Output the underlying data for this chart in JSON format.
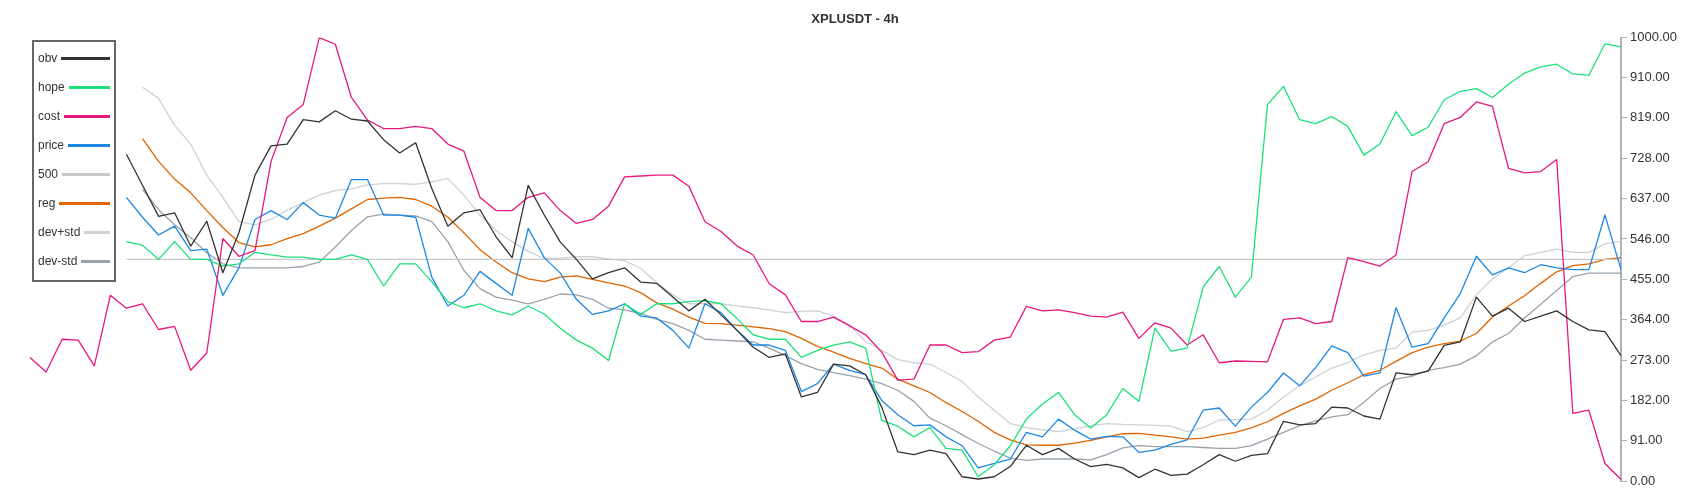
{
  "chart_data": {
    "type": "line",
    "title": "XPLUSDT - 4h",
    "categories": [
      null,
      null,
      null,
      null,
      null,
      null,
      null,
      null,
      null,
      null,
      null,
      null,
      null,
      null,
      null,
      null,
      null,
      null,
      null,
      null,
      null,
      null,
      null,
      null,
      null,
      null,
      null,
      null,
      null,
      null,
      null,
      null,
      null,
      null,
      null,
      null,
      null,
      null,
      null,
      null,
      null,
      null,
      null,
      null,
      null,
      null,
      null,
      null,
      null,
      null,
      null,
      null,
      null,
      null,
      null,
      null,
      null,
      null,
      null,
      null,
      null,
      null,
      null,
      null,
      null,
      null,
      null,
      null,
      null,
      null,
      null,
      null,
      null,
      null,
      null,
      null,
      null,
      null,
      null,
      null,
      null,
      null,
      null,
      null,
      null,
      null,
      null,
      null,
      null,
      null,
      null,
      null,
      null,
      null,
      null,
      null,
      null,
      null,
      null,
      null
    ],
    "series": [
      {
        "name": "obv",
        "color": "#333333",
        "values": [
          null,
          null,
          null,
          null,
          null,
          null,
          737,
          667,
          597,
          605,
          530,
          586,
          470,
          560,
          690,
          756,
          760,
          815,
          810,
          835,
          816,
          812,
          770,
          740,
          763,
          660,
          575,
          605,
          612,
          551,
          504,
          667,
          600,
          539,
          500,
          456,
          470,
          481,
          449,
          446,
          415,
          384,
          410,
          375,
          340,
          302,
          279,
          287,
          190,
          200,
          264,
          260,
          240,
          167,
          66,
          60,
          70,
          62,
          10,
          5,
          10,
          33,
          81,
          60,
          74,
          50,
          33,
          38,
          30,
          8,
          27,
          13,
          16,
          37,
          60,
          45,
          58,
          62,
          135,
          127,
          130,
          167,
          165,
          147,
          140,
          244,
          240,
          248,
          306,
          314,
          415,
          372,
          390,
          360,
          372,
          384,
          360,
          341,
          337,
          283
        ]
      },
      {
        "name": "hope",
        "color": "#1ee07a",
        "values": [
          null,
          null,
          null,
          null,
          null,
          null,
          540,
          532,
          500,
          540,
          500,
          500,
          485,
          490,
          516,
          510,
          505,
          505,
          500,
          500,
          510,
          500,
          440,
          490,
          490,
          450,
          405,
          391,
          400,
          384,
          375,
          395,
          377,
          345,
          318,
          300,
          272,
          400,
          376,
          400,
          400,
          405,
          407,
          400,
          366,
          330,
          320,
          320,
          279,
          295,
          307,
          314,
          300,
          137,
          124,
          100,
          121,
          74,
          70,
          10,
          37,
          80,
          140,
          174,
          200,
          150,
          120,
          150,
          209,
          180,
          345,
          293,
          300,
          438,
          484,
          415,
          460,
          849,
          890,
          815,
          806,
          822,
          800,
          735,
          760,
          833,
          779,
          798,
          860,
          879,
          885,
          865,
          895,
          920,
          934,
          940,
          918,
          915,
          986,
          979
        ]
      },
      {
        "name": "cost",
        "color": "#e6187f",
        "values": [
          279,
          246,
          320,
          318,
          260,
          419,
          390,
          400,
          342,
          349,
          250,
          289,
          547,
          507,
          520,
          721,
          820,
          849,
          1000,
          985,
          865,
          814,
          795,
          795,
          800,
          795,
          760,
          744,
          640,
          610,
          610,
          640,
          650,
          610,
          581,
          590,
          620,
          686,
          688,
          690,
          690,
          665,
          585,
          563,
          530,
          510,
          445,
          420,
          360,
          360,
          370,
          350,
          330,
          291,
          228,
          230,
          307,
          307,
          290,
          292,
          318,
          325,
          394,
          384,
          386,
          380,
          372,
          370,
          381,
          322,
          357,
          345,
          307,
          330,
          267,
          271,
          270,
          269,
          365,
          368,
          355,
          360,
          504,
          495,
          485,
          510,
          698,
          720,
          806,
          820,
          855,
          845,
          705,
          695,
          698,
          725,
          153,
          160,
          40,
          4
        ]
      },
      {
        "name": "price",
        "color": "#1e88e5",
        "values": [
          null,
          null,
          null,
          null,
          null,
          null,
          640,
          595,
          555,
          575,
          520,
          523,
          419,
          481,
          590,
          610,
          590,
          628,
          600,
          593,
          680,
          680,
          600,
          600,
          595,
          460,
          395,
          419,
          473,
          446,
          419,
          570,
          504,
          469,
          410,
          376,
          384,
          400,
          372,
          368,
          340,
          300,
          400,
          380,
          340,
          307,
          307,
          295,
          202,
          220,
          264,
          250,
          240,
          182,
          150,
          125,
          127,
          100,
          80,
          30,
          40,
          50,
          110,
          100,
          140,
          115,
          95,
          101,
          100,
          65,
          70,
          83,
          93,
          160,
          165,
          124,
          167,
          200,
          244,
          215,
          256,
          305,
          290,
          237,
          244,
          391,
          302,
          310,
          368,
          423,
          507,
          465,
          481,
          470,
          488,
          481,
          477,
          477,
          600,
          477
        ]
      },
      {
        "name": "500",
        "color": "#c8c8c8",
        "values": [
          null,
          null,
          null,
          null,
          null,
          null,
          500,
          500,
          500,
          500,
          500,
          500,
          500,
          500,
          500,
          500,
          500,
          500,
          500,
          500,
          500,
          500,
          500,
          500,
          500,
          500,
          500,
          500,
          500,
          500,
          500,
          500,
          500,
          500,
          500,
          500,
          500,
          500,
          500,
          500,
          500,
          500,
          500,
          500,
          500,
          500,
          500,
          500,
          500,
          500,
          500,
          500,
          500,
          500,
          500,
          500,
          500,
          500,
          500,
          500,
          500,
          500,
          500,
          500,
          500,
          500,
          500,
          500,
          500,
          500,
          500,
          500,
          500,
          500,
          500,
          500,
          500,
          500,
          500,
          500,
          500,
          500,
          500,
          500,
          500,
          500,
          500,
          500,
          500,
          500,
          500,
          500,
          500,
          500,
          500,
          500,
          500,
          500,
          500,
          500
        ]
      },
      {
        "name": "reg",
        "color": "#e06400",
        "values": [
          null,
          null,
          null,
          null,
          null,
          null,
          null,
          772,
          721,
          681,
          650,
          610,
          572,
          538,
          528,
          533,
          547,
          558,
          575,
          593,
          614,
          635,
          638,
          640,
          635,
          620,
          595,
          560,
          522,
          494,
          470,
          456,
          450,
          460,
          463,
          455,
          447,
          440,
          425,
          402,
          388,
          370,
          356,
          355,
          352,
          348,
          344,
          337,
          322,
          304,
          291,
          277,
          265,
          255,
          230,
          215,
          200,
          177,
          157,
          135,
          110,
          93,
          82,
          81,
          81,
          86,
          92,
          100,
          107,
          108,
          104,
          100,
          95,
          97,
          104,
          110,
          120,
          134,
          153,
          170,
          185,
          205,
          222,
          240,
          250,
          270,
          290,
          302,
          310,
          316,
          333,
          370,
          395,
          418,
          446,
          472,
          486,
          490,
          500,
          504
        ]
      },
      {
        "name": "dev+std",
        "color": "#cdd2d6",
        "values": [
          null,
          null,
          null,
          null,
          null,
          null,
          null,
          888,
          863,
          802,
          760,
          690,
          640,
          585,
          578,
          590,
          611,
          628,
          645,
          655,
          659,
          668,
          671,
          671,
          669,
          675,
          682,
          645,
          600,
          565,
          540,
          518,
          502,
          503,
          506,
          506,
          501,
          497,
          480,
          447,
          420,
          400,
          400,
          400,
          395,
          391,
          386,
          380,
          383,
          384,
          372,
          352,
          315,
          295,
          274,
          267,
          264,
          245,
          225,
          190,
          160,
          130,
          121,
          116,
          112,
          118,
          125,
          130,
          128,
          127,
          126,
          124,
          112,
          121,
          138,
          139,
          140,
          160,
          190,
          215,
          235,
          255,
          267,
          285,
          295,
          300,
          336,
          340,
          352,
          368,
          420,
          456,
          481,
          508,
          516,
          523,
          516,
          516,
          535,
          541
        ]
      },
      {
        "name": "dev-std",
        "color": "#98a3ad",
        "values": [
          null,
          null,
          null,
          null,
          null,
          null,
          null,
          658,
          612,
          578,
          549,
          515,
          490,
          481,
          481,
          481,
          481,
          484,
          494,
          528,
          565,
          596,
          602,
          600,
          598,
          585,
          540,
          475,
          434,
          415,
          408,
          400,
          410,
          422,
          420,
          410,
          390,
          386,
          378,
          365,
          355,
          340,
          320,
          318,
          316,
          314,
          300,
          283,
          265,
          252,
          245,
          238,
          230,
          220,
          205,
          180,
          142,
          125,
          105,
          85,
          68,
          52,
          47,
          50,
          50,
          50,
          48,
          60,
          75,
          80,
          78,
          78,
          78,
          76,
          74,
          74,
          80,
          95,
          110,
          125,
          136,
          145,
          150,
          178,
          209,
          230,
          237,
          250,
          256,
          264,
          283,
          314,
          333,
          368,
          399,
          430,
          461,
          469,
          469,
          469
        ]
      }
    ],
    "ylim": [
      0,
      1000
    ],
    "yticks": [
      {
        "value": 0,
        "label": "0.00"
      },
      {
        "value": 91,
        "label": "91.00"
      },
      {
        "value": 182,
        "label": "182.00"
      },
      {
        "value": 273,
        "label": "273.00"
      },
      {
        "value": 364,
        "label": "364.00"
      },
      {
        "value": 455,
        "label": "455.00"
      },
      {
        "value": 546,
        "label": "546.00"
      },
      {
        "value": 637,
        "label": "637.00"
      },
      {
        "value": 728,
        "label": "728.00"
      },
      {
        "value": 819,
        "label": "819.00"
      },
      {
        "value": 910,
        "label": "910.00"
      },
      {
        "value": 1000,
        "label": "1000.00"
      }
    ],
    "grid": false,
    "legend": "top left",
    "marker": "none",
    "tick_labels": "y"
  }
}
